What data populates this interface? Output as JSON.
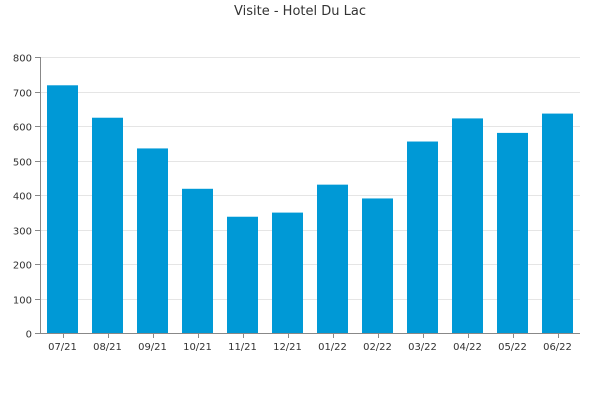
{
  "chart_data": {
    "type": "bar",
    "title": "Visite - Hotel Du Lac",
    "xlabel": "",
    "ylabel": "",
    "categories": [
      "07/21",
      "08/21",
      "09/21",
      "10/21",
      "11/21",
      "12/21",
      "01/22",
      "02/22",
      "03/22",
      "04/22",
      "05/22",
      "06/22"
    ],
    "values": [
      718,
      624,
      535,
      418,
      337,
      349,
      430,
      390,
      555,
      622,
      580,
      636
    ],
    "ylim": [
      0,
      800
    ],
    "yticks": [
      0,
      100,
      200,
      300,
      400,
      500,
      600,
      700,
      800
    ],
    "grid": true,
    "legend": "none",
    "colors": {
      "bar": "#0099d6",
      "grid": "#e5e5e5",
      "axis": "#888888",
      "text": "#333333"
    }
  }
}
